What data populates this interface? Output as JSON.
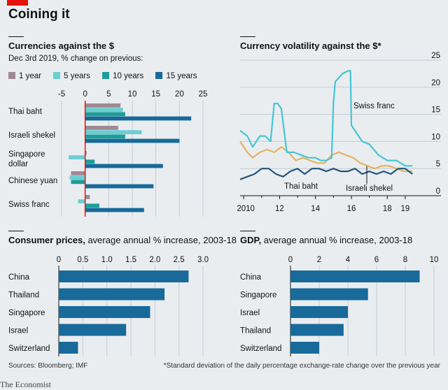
{
  "title": "Coining it",
  "colors": {
    "one_year": "#a08a92",
    "five_years": "#6bcfd2",
    "ten_years": "#1b9e9a",
    "fifteen_years": "#176a9a",
    "swiss": "#45c6d3",
    "thai": "#22557b",
    "israeli": "#e7b25f",
    "bar": "#176a9a",
    "red": "#e3120b"
  },
  "source": "Sources: Bloomberg; IMF",
  "footnote": "*Standard deviation of the daily percentage exchange-rate change over the previous year",
  "brand": "The Economist",
  "chart_data": [
    {
      "type": "bar",
      "title": "Currencies against the $",
      "subtitle": "Dec 3rd 2019, % change on previous:",
      "categories": [
        "Thai baht",
        "Israeli shekel",
        "Singapore dollar",
        "Chinese yuan",
        "Swiss franc"
      ],
      "series": [
        {
          "name": "1 year",
          "values": [
            7.5,
            7.0,
            0.3,
            -3.0,
            1.0
          ]
        },
        {
          "name": "5 years",
          "values": [
            8.0,
            12.0,
            -3.5,
            -3.3,
            -1.5
          ]
        },
        {
          "name": "10 years",
          "values": [
            8.5,
            8.5,
            2.0,
            -3.0,
            3.0
          ]
        },
        {
          "name": "15 years",
          "values": [
            22.5,
            20.0,
            16.5,
            14.5,
            12.5
          ]
        }
      ],
      "xlim": [
        -5,
        25
      ],
      "ticks": [
        "-5",
        "0",
        "5",
        "10",
        "15",
        "20",
        "25"
      ]
    },
    {
      "type": "line",
      "title": "Currency volatility against the $*",
      "x_ticks": [
        "2010",
        "12",
        "14",
        "16",
        "18",
        "19"
      ],
      "y_ticks": [
        "0",
        "5",
        "10",
        "15",
        "20",
        "25"
      ],
      "ylim": [
        0,
        25
      ],
      "xlim": [
        2009.8,
        2019.9
      ],
      "series": [
        {
          "name": "Swiss franc",
          "x": [
            2009.8,
            2010.2,
            2010.5,
            2010.9,
            2011.2,
            2011.5,
            2011.7,
            2011.9,
            2012.1,
            2012.4,
            2012.8,
            2013.2,
            2013.6,
            2014.0,
            2014.3,
            2014.6,
            2014.9,
            2015.0,
            2015.1,
            2015.5,
            2015.8,
            2015.95,
            2016.0,
            2016.2,
            2016.6,
            2017.0,
            2017.5,
            2018.0,
            2018.5,
            2019.0,
            2019.4
          ],
          "y": [
            12,
            11,
            9,
            11,
            11,
            10,
            17,
            17,
            16,
            8,
            8,
            7.5,
            7,
            7,
            6.5,
            6.5,
            7,
            17,
            21,
            22.5,
            23,
            23,
            13,
            12,
            10,
            9.5,
            7.5,
            6.5,
            6.5,
            5.5,
            5.5
          ]
        },
        {
          "name": "Thai baht",
          "x": [
            2009.8,
            2010.2,
            2010.6,
            2011.0,
            2011.4,
            2011.8,
            2012.2,
            2012.6,
            2013.0,
            2013.4,
            2013.8,
            2014.2,
            2014.6,
            2015.0,
            2015.4,
            2015.8,
            2016.2,
            2016.6,
            2017.0,
            2017.4,
            2017.8,
            2018.2,
            2018.6,
            2019.0,
            2019.4
          ],
          "y": [
            3,
            3.5,
            4,
            5,
            5,
            4,
            3.5,
            4.5,
            5,
            4,
            5,
            5,
            4.5,
            5,
            4.5,
            4.5,
            5,
            4,
            4.5,
            4,
            4.5,
            4,
            5,
            5,
            4
          ]
        },
        {
          "name": "Israeli shekel",
          "x": [
            2009.8,
            2010.2,
            2010.5,
            2010.9,
            2011.3,
            2011.7,
            2012.1,
            2012.5,
            2012.9,
            2013.3,
            2013.7,
            2014.1,
            2014.5,
            2014.9,
            2015.3,
            2015.7,
            2016.1,
            2016.5,
            2016.9,
            2017.3,
            2017.7,
            2018.1,
            2018.5,
            2018.9,
            2019.4
          ],
          "y": [
            10,
            8,
            7,
            8,
            8.5,
            8,
            9,
            8,
            6.5,
            7,
            6.5,
            6,
            6,
            7.5,
            8,
            7.5,
            7,
            6,
            5.5,
            5,
            5.5,
            5.5,
            5,
            4.5,
            4.5
          ]
        }
      ]
    },
    {
      "type": "bar",
      "title": "Consumer prices,",
      "subtitle": "average annual % increase, 2003-18",
      "categories": [
        "China",
        "Thailand",
        "Singapore",
        "Israel",
        "Switzerland"
      ],
      "values": [
        2.7,
        2.2,
        1.9,
        1.4,
        0.4
      ],
      "xlim": [
        0,
        3.0
      ],
      "ticks": [
        "0",
        "0.5",
        "1.0",
        "1.5",
        "2.0",
        "2.5",
        "3.0"
      ]
    },
    {
      "type": "bar",
      "title": "GDP,",
      "subtitle": "average annual % increase, 2003-18",
      "categories": [
        "China",
        "Singapore",
        "Israel",
        "Thailand",
        "Switzerland"
      ],
      "values": [
        9.0,
        5.4,
        4.0,
        3.7,
        2.0
      ],
      "xlim": [
        0,
        10
      ],
      "ticks": [
        "0",
        "2",
        "4",
        "6",
        "8",
        "10"
      ]
    }
  ]
}
